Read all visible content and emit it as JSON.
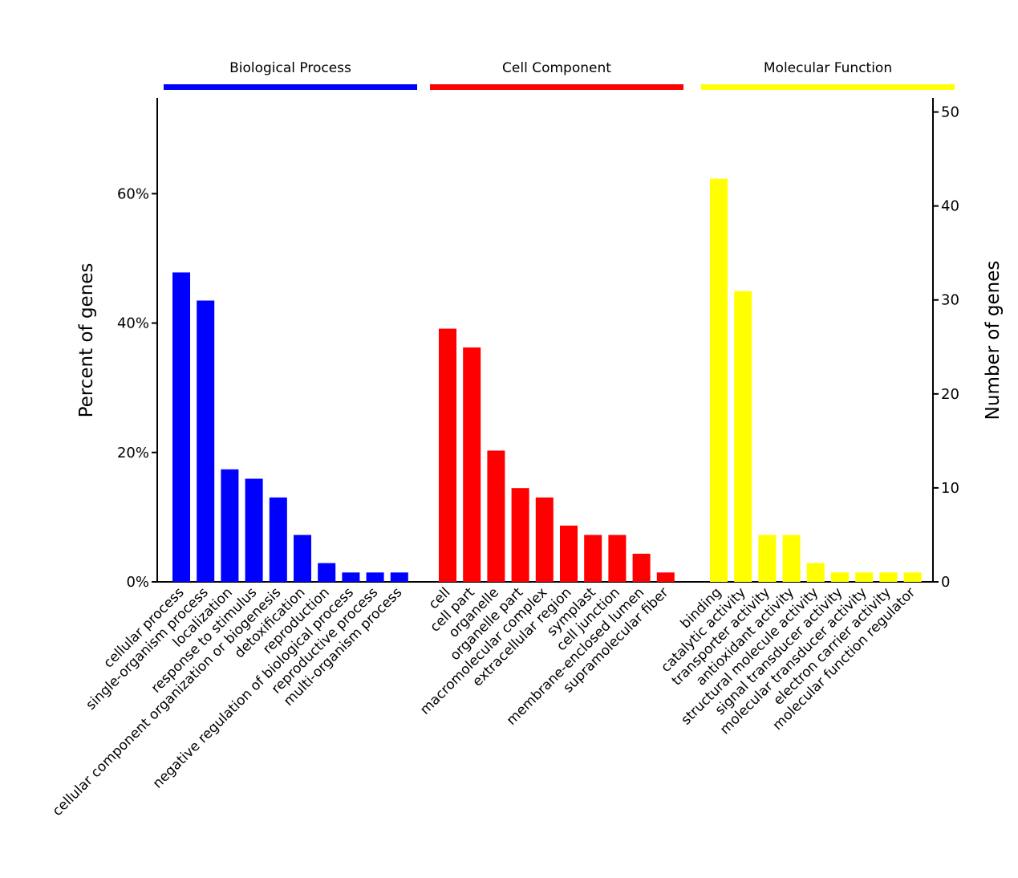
{
  "chart_data": {
    "type": "bar",
    "ylabel_left": "Percent of genes",
    "ylabel_right": "Number of genes",
    "y_left_ticks": [
      "0%",
      "20%",
      "40%",
      "60%"
    ],
    "y_left_tick_values": [
      0,
      20,
      40,
      60
    ],
    "y_right_ticks": [
      "0",
      "10",
      "20",
      "30",
      "40",
      "50"
    ],
    "y_right_tick_values": [
      0,
      10,
      20,
      30,
      40,
      50
    ],
    "y_left_max": 74.8,
    "y_right_max": 51.5,
    "grid": false,
    "groups": [
      {
        "name": "Biological Process",
        "color": "#0000ff",
        "categories": [
          "cellular process",
          "single-organism process",
          "localization",
          "response to stimulus",
          "cellular component organization or biogenesis",
          "detoxification",
          "reproduction",
          "negative regulation of biological process",
          "reproductive process",
          "multi-organism process"
        ],
        "counts": [
          33,
          30,
          12,
          11,
          9,
          5,
          2,
          1,
          1,
          1
        ]
      },
      {
        "name": "Cell Component",
        "color": "#ff0000",
        "categories": [
          "cell",
          "cell part",
          "organelle",
          "organelle part",
          "macromolecular complex",
          "extracellular region",
          "symplast",
          "cell junction",
          "membrane-enclosed lumen",
          "supramolecular fiber"
        ],
        "counts": [
          27,
          25,
          14,
          10,
          9,
          6,
          5,
          5,
          3,
          1
        ]
      },
      {
        "name": "Molecular Function",
        "color": "#ffff00",
        "categories": [
          "binding",
          "catalytic activity",
          "transporter activity",
          "antioxidant activity",
          "structural molecule activity",
          "signal transducer activity",
          "molecular transducer activity",
          "electron carrier activity",
          "molecular function regulator"
        ],
        "counts": [
          43,
          31,
          5,
          5,
          2,
          1,
          1,
          1,
          1
        ]
      }
    ]
  }
}
